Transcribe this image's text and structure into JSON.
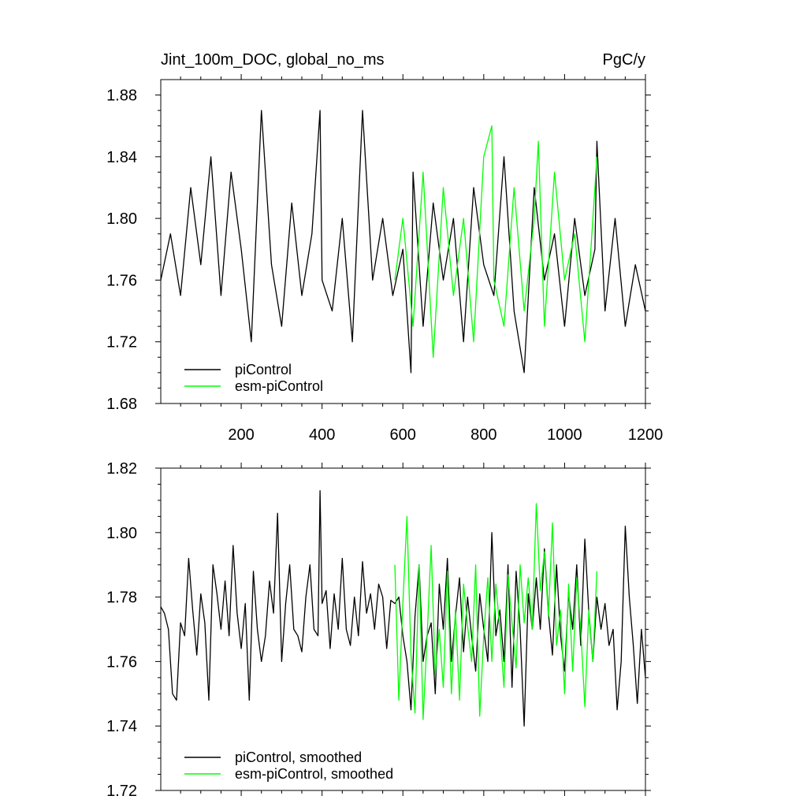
{
  "chart_data": [
    {
      "type": "line",
      "title": "Jint_100m_DOC, global_no_ms",
      "units": "PgC/y",
      "xlim": [
        1,
        1200
      ],
      "ylim": [
        1.68,
        1.89
      ],
      "x_ticks": [
        200,
        400,
        600,
        800,
        1000,
        1200
      ],
      "y_ticks": [
        1.68,
        1.72,
        1.76,
        1.8,
        1.84,
        1.88
      ],
      "y_tick_labels": [
        "1.68",
        "1.72",
        "1.76",
        "1.80",
        "1.84",
        "1.88"
      ],
      "x_tick_labels": [
        "200",
        "400",
        "600",
        "800",
        "1000",
        "1200"
      ],
      "grid": false,
      "legend_position": "bottom-left",
      "series": [
        {
          "name": "piControl",
          "color": "#000000",
          "x": [
            1,
            25,
            50,
            75,
            100,
            125,
            150,
            175,
            200,
            225,
            250,
            275,
            300,
            325,
            350,
            375,
            395,
            400,
            425,
            450,
            475,
            500,
            525,
            550,
            575,
            600,
            620,
            625,
            650,
            675,
            700,
            725,
            750,
            775,
            800,
            825,
            850,
            875,
            900,
            925,
            950,
            975,
            1000,
            1025,
            1050,
            1075,
            1080,
            1100,
            1125,
            1150,
            1175,
            1200
          ],
          "values": [
            1.76,
            1.79,
            1.75,
            1.82,
            1.77,
            1.84,
            1.75,
            1.83,
            1.78,
            1.72,
            1.87,
            1.77,
            1.73,
            1.81,
            1.75,
            1.79,
            1.87,
            1.76,
            1.74,
            1.8,
            1.72,
            1.87,
            1.76,
            1.8,
            1.75,
            1.78,
            1.7,
            1.83,
            1.73,
            1.81,
            1.76,
            1.8,
            1.72,
            1.82,
            1.77,
            1.75,
            1.84,
            1.74,
            1.7,
            1.82,
            1.76,
            1.79,
            1.73,
            1.8,
            1.75,
            1.78,
            1.85,
            1.74,
            1.8,
            1.73,
            1.77,
            1.74
          ]
        },
        {
          "name": "esm-piControl",
          "color": "#00ff00",
          "x": [
            580,
            600,
            625,
            650,
            675,
            700,
            725,
            750,
            775,
            800,
            820,
            825,
            850,
            875,
            900,
            925,
            935,
            950,
            975,
            1000,
            1025,
            1050,
            1075,
            1080
          ],
          "values": [
            1.76,
            1.8,
            1.73,
            1.83,
            1.71,
            1.82,
            1.75,
            1.8,
            1.72,
            1.84,
            1.86,
            1.76,
            1.73,
            1.82,
            1.74,
            1.8,
            1.85,
            1.73,
            1.83,
            1.76,
            1.79,
            1.72,
            1.82,
            1.84
          ]
        }
      ]
    },
    {
      "type": "line",
      "title": "",
      "xlim": [
        1,
        1200
      ],
      "ylim": [
        1.72,
        1.82
      ],
      "x_ticks": [
        200,
        400,
        600,
        800,
        1000,
        1200
      ],
      "y_ticks": [
        1.72,
        1.74,
        1.76,
        1.78,
        1.8,
        1.82
      ],
      "y_tick_labels": [
        "1.72",
        "1.74",
        "1.76",
        "1.78",
        "1.80",
        "1.82"
      ],
      "grid": false,
      "legend_position": "bottom-left",
      "series": [
        {
          "name": "piControl, smoothed",
          "color": "#000000",
          "x": [
            1,
            10,
            20,
            30,
            40,
            50,
            60,
            70,
            80,
            90,
            100,
            110,
            120,
            130,
            140,
            150,
            160,
            170,
            180,
            190,
            200,
            210,
            220,
            230,
            240,
            250,
            260,
            270,
            280,
            290,
            300,
            310,
            320,
            330,
            340,
            350,
            360,
            370,
            380,
            390,
            395,
            400,
            410,
            420,
            430,
            440,
            450,
            460,
            470,
            480,
            490,
            500,
            510,
            520,
            530,
            540,
            550,
            560,
            570,
            580,
            590,
            600,
            610,
            620,
            630,
            640,
            650,
            660,
            670,
            680,
            690,
            700,
            710,
            720,
            730,
            740,
            750,
            760,
            770,
            780,
            790,
            800,
            810,
            820,
            830,
            840,
            850,
            860,
            870,
            880,
            890,
            900,
            910,
            920,
            930,
            940,
            950,
            960,
            970,
            980,
            990,
            1000,
            1010,
            1020,
            1030,
            1040,
            1050,
            1060,
            1070,
            1080,
            1090,
            1100,
            1110,
            1120,
            1130,
            1140,
            1150,
            1160,
            1170,
            1180,
            1190,
            1200
          ],
          "values": [
            1.777,
            1.775,
            1.77,
            1.75,
            1.748,
            1.772,
            1.768,
            1.792,
            1.776,
            1.762,
            1.781,
            1.772,
            1.748,
            1.79,
            1.781,
            1.77,
            1.785,
            1.768,
            1.796,
            1.775,
            1.764,
            1.778,
            1.748,
            1.788,
            1.77,
            1.76,
            1.768,
            1.785,
            1.775,
            1.806,
            1.76,
            1.778,
            1.79,
            1.77,
            1.768,
            1.763,
            1.78,
            1.79,
            1.77,
            1.768,
            1.813,
            1.778,
            1.782,
            1.764,
            1.781,
            1.77,
            1.792,
            1.77,
            1.765,
            1.78,
            1.768,
            1.791,
            1.775,
            1.781,
            1.77,
            1.784,
            1.78,
            1.764,
            1.779,
            1.778,
            1.78,
            1.768,
            1.76,
            1.745,
            1.774,
            1.79,
            1.76,
            1.768,
            1.772,
            1.75,
            1.784,
            1.77,
            1.792,
            1.76,
            1.774,
            1.786,
            1.763,
            1.78,
            1.768,
            1.757,
            1.781,
            1.77,
            1.76,
            1.8,
            1.768,
            1.776,
            1.76,
            1.79,
            1.752,
            1.788,
            1.77,
            1.74,
            1.781,
            1.77,
            1.786,
            1.77,
            1.795,
            1.775,
            1.762,
            1.79,
            1.768,
            1.757,
            1.781,
            1.77,
            1.79,
            1.765,
            1.798,
            1.775,
            1.76,
            1.78,
            1.77,
            1.778,
            1.765,
            1.77,
            1.745,
            1.76,
            1.802,
            1.78,
            1.765,
            1.747,
            1.77,
            1.755
          ]
        },
        {
          "name": "esm-piControl, smoothed",
          "color": "#00ff00",
          "x": [
            580,
            590,
            600,
            610,
            620,
            630,
            640,
            650,
            660,
            670,
            680,
            690,
            700,
            710,
            720,
            730,
            740,
            750,
            760,
            770,
            780,
            790,
            800,
            810,
            820,
            830,
            840,
            850,
            860,
            870,
            880,
            890,
            900,
            910,
            920,
            930,
            940,
            950,
            960,
            970,
            980,
            990,
            1000,
            1010,
            1020,
            1030,
            1040,
            1050,
            1060,
            1070,
            1080
          ],
          "values": [
            1.79,
            1.748,
            1.778,
            1.805,
            1.762,
            1.744,
            1.79,
            1.742,
            1.768,
            1.796,
            1.756,
            1.77,
            1.752,
            1.788,
            1.75,
            1.776,
            1.748,
            1.784,
            1.771,
            1.76,
            1.79,
            1.743,
            1.768,
            1.786,
            1.76,
            1.784,
            1.77,
            1.752,
            1.787,
            1.772,
            1.758,
            1.79,
            1.772,
            1.786,
            1.77,
            1.809,
            1.782,
            1.794,
            1.774,
            1.803,
            1.765,
            1.776,
            1.75,
            1.784,
            1.757,
            1.786,
            1.77,
            1.746,
            1.776,
            1.76,
            1.788
          ]
        }
      ]
    }
  ]
}
